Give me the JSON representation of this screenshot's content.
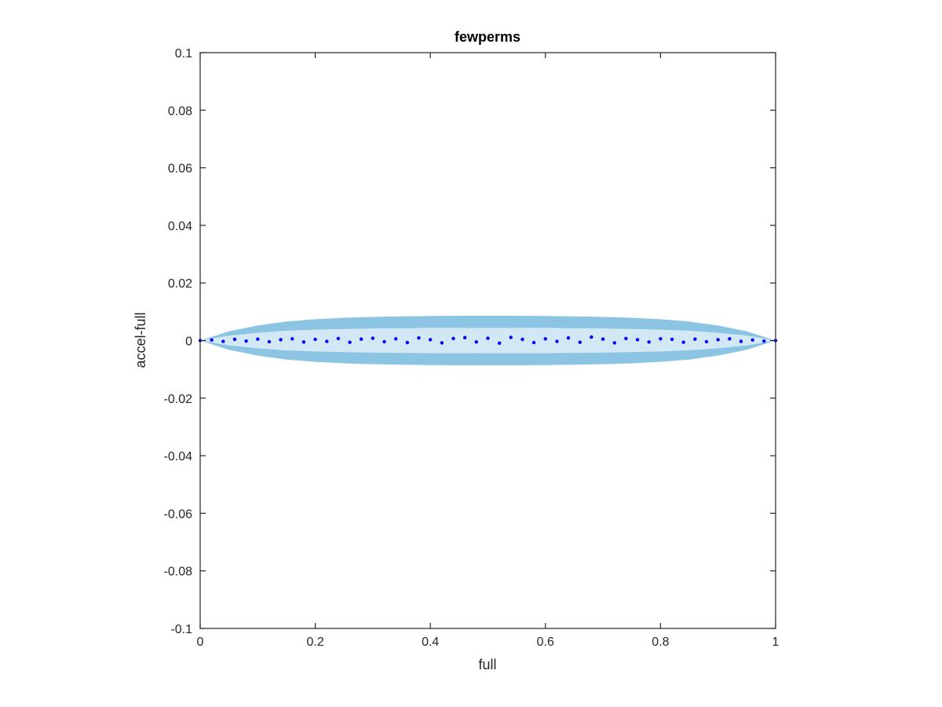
{
  "chart_data": {
    "type": "scatter",
    "title": "fewperms",
    "xlabel": "full",
    "ylabel": "accel-full",
    "xlim": [
      0,
      1
    ],
    "ylim": [
      -0.1,
      0.1
    ],
    "x_ticks": [
      0,
      0.2,
      0.4,
      0.6,
      0.8,
      1
    ],
    "x_tick_labels": [
      "0",
      "0.2",
      "0.4",
      "0.6",
      "0.8",
      "1"
    ],
    "y_ticks": [
      0.1,
      0.08,
      0.06,
      0.04,
      0.02,
      0,
      -0.02,
      -0.04,
      -0.06,
      -0.08,
      -0.1
    ],
    "y_tick_labels": [
      "0.1",
      "0.08",
      "0.06",
      "0.04",
      "0.02",
      "0",
      "-0.02",
      "-0.04",
      "-0.06",
      "-0.08",
      "-0.1"
    ],
    "grid": false,
    "legend": "none",
    "colors": {
      "outer_band": "#8cc4e3",
      "inner_band": "#d3e8f5",
      "points": "#0000ff",
      "axes": "#262626"
    },
    "bands": {
      "x": [
        0,
        0.05,
        0.1,
        0.15,
        0.2,
        0.25,
        0.3,
        0.35,
        0.4,
        0.45,
        0.5,
        0.55,
        0.6,
        0.65,
        0.7,
        0.75,
        0.8,
        0.85,
        0.9,
        0.95,
        1
      ],
      "outer_upper": [
        0,
        0.0032,
        0.0052,
        0.0066,
        0.0074,
        0.0079,
        0.0082,
        0.0084,
        0.0085,
        0.0086,
        0.0086,
        0.0086,
        0.0085,
        0.0084,
        0.0082,
        0.0079,
        0.0074,
        0.0066,
        0.0052,
        0.0032,
        0
      ],
      "outer_lower": [
        0,
        -0.0032,
        -0.0052,
        -0.0066,
        -0.0074,
        -0.0079,
        -0.0082,
        -0.0084,
        -0.0085,
        -0.0086,
        -0.0086,
        -0.0086,
        -0.0085,
        -0.0084,
        -0.0082,
        -0.0079,
        -0.0074,
        -0.0066,
        -0.0052,
        -0.0032,
        0
      ],
      "inner_upper": [
        0,
        0.0017,
        0.0027,
        0.0034,
        0.0038,
        0.004,
        0.0042,
        0.0043,
        0.0044,
        0.0044,
        0.0044,
        0.0044,
        0.0044,
        0.0043,
        0.0042,
        0.004,
        0.0038,
        0.0034,
        0.0027,
        0.0017,
        0
      ],
      "inner_lower": [
        0,
        -0.0017,
        -0.0027,
        -0.0034,
        -0.0038,
        -0.004,
        -0.0042,
        -0.0043,
        -0.0044,
        -0.0044,
        -0.0044,
        -0.0044,
        -0.0044,
        -0.0043,
        -0.0042,
        -0.004,
        -0.0038,
        -0.0034,
        -0.0027,
        -0.0017,
        0
      ]
    },
    "points": {
      "x": [
        0,
        0.02,
        0.04,
        0.06,
        0.08,
        0.1,
        0.12,
        0.14,
        0.16,
        0.18,
        0.2,
        0.22,
        0.24,
        0.26,
        0.28,
        0.3,
        0.32,
        0.34,
        0.36,
        0.38,
        0.4,
        0.42,
        0.44,
        0.46,
        0.48,
        0.5,
        0.52,
        0.54,
        0.56,
        0.58,
        0.6,
        0.62,
        0.64,
        0.66,
        0.68,
        0.7,
        0.72,
        0.74,
        0.76,
        0.78,
        0.8,
        0.82,
        0.84,
        0.86,
        0.88,
        0.9,
        0.92,
        0.94,
        0.96,
        0.98,
        1
      ],
      "y": [
        0,
        0.0002,
        -0.0003,
        0.0004,
        -0.0002,
        0.0005,
        -0.0004,
        0.0003,
        0.0006,
        -0.0005,
        0.0004,
        -0.0003,
        0.0007,
        -0.0006,
        0.0005,
        0.0008,
        -0.0004,
        0.0006,
        -0.0007,
        0.0009,
        0.0003,
        -0.0008,
        0.0007,
        0.001,
        -0.0005,
        0.0008,
        -0.0009,
        0.0011,
        0.0004,
        -0.0007,
        0.0006,
        -0.0003,
        0.0009,
        -0.0006,
        0.0012,
        0.0005,
        -0.0008,
        0.0007,
        0.0003,
        -0.0005,
        0.0006,
        0.0004,
        -0.0006,
        0.0005,
        -0.0004,
        0.0003,
        0.0006,
        -0.0003,
        0.0002,
        -0.0002,
        0
      ]
    }
  }
}
